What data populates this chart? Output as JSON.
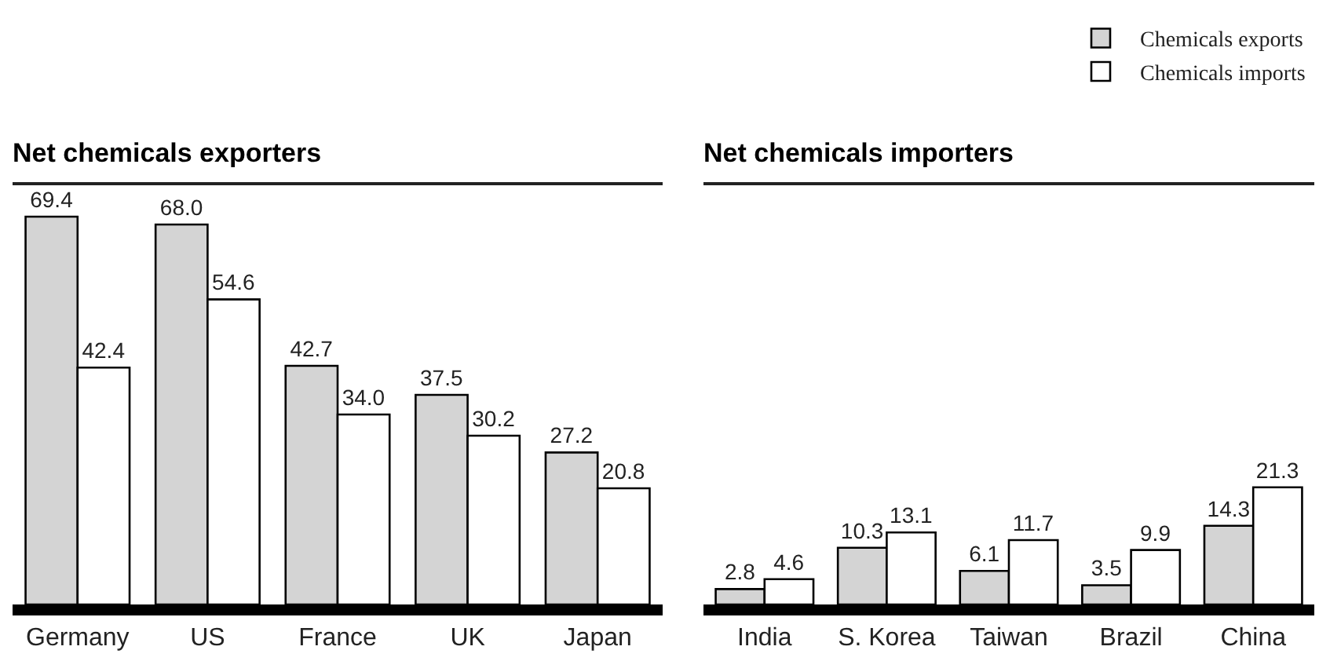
{
  "chart_data": [
    {
      "type": "bar",
      "title": "Net chemicals exporters",
      "categories": [
        "Germany",
        "US",
        "France",
        "UK",
        "Japan"
      ],
      "tick_labels": "x",
      "series": [
        {
          "color": "#d4d4d4",
          "values": [
            69.4,
            68.0,
            42.7,
            37.5,
            27.2
          ],
          "value_labels": [
            "69.4",
            "68.0",
            "42.7",
            "37.5",
            "27.2"
          ]
        },
        {
          "color": "#ffffff",
          "values": [
            42.4,
            54.6,
            34.0,
            30.2,
            20.8
          ],
          "value_labels": [
            "42.4",
            "54.6",
            "34.0",
            "30.2",
            "20.8"
          ]
        }
      ]
    },
    {
      "type": "bar",
      "title": "Net chemicals importers",
      "categories": [
        "India",
        "S. Korea",
        "Taiwan",
        "Brazil",
        "China"
      ],
      "tick_labels": "x",
      "legend": "top right",
      "series": [
        {
          "name": "Chemicals exports",
          "color": "#d4d4d4",
          "values": [
            2.8,
            10.3,
            6.1,
            3.5,
            14.3
          ],
          "value_labels": [
            "2.8",
            "10.3",
            "6.1",
            "3.5",
            "14.3"
          ]
        },
        {
          "name": "Chemicals imports",
          "color": "#ffffff",
          "values": [
            4.6,
            13.1,
            11.7,
            9.9,
            21.3
          ],
          "value_labels": [
            "4.6",
            "13.1",
            "11.7",
            "9.9",
            "21.3"
          ]
        }
      ]
    }
  ]
}
